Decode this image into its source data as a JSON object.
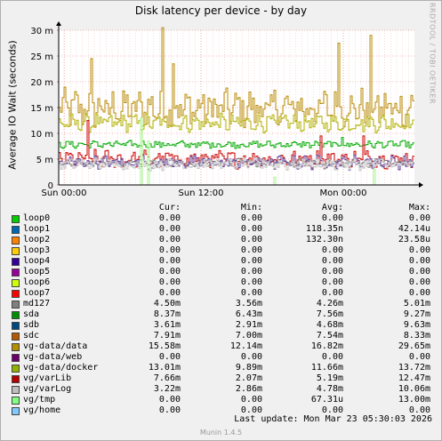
{
  "chart_data": {
    "type": "line",
    "title": "Disk latency per device - by day",
    "ylabel": "Average IO Wait (seconds)",
    "xlabel": "",
    "ylim": [
      0,
      0.03
    ],
    "y_ticks": [
      "0",
      "5 m",
      "10 m",
      "15 m",
      "20 m",
      "25 m",
      "30 m"
    ],
    "x_ticks": [
      "Sun 00:00",
      "Sun 12:00",
      "Mon 00:00"
    ],
    "grid": true,
    "series": [
      {
        "name": "vg-data/data",
        "color": "#b78b00",
        "typical": [
          0.0115,
          0.0182
        ],
        "spikes": [
          [
            0.29,
            0.0305
          ],
          [
            0.79,
            0.0275
          ],
          [
            0.88,
            0.029
          ],
          [
            0.32,
            0.0235
          ],
          [
            0.09,
            0.0245
          ]
        ]
      },
      {
        "name": "vg-data/docker",
        "color": "#b0b000",
        "typical": [
          0.0105,
          0.0135
        ],
        "spikes": [
          [
            0.64,
            0.0135
          ]
        ]
      },
      {
        "name": "sda",
        "color": "#00aa00",
        "typical": [
          0.0072,
          0.0085
        ],
        "spikes": [
          [
            0.8,
            0.0092
          ]
        ]
      },
      {
        "name": "vg/varLib",
        "color": "#cc0000",
        "typical": [
          0.0035,
          0.0065
        ],
        "spikes": [
          [
            0.08,
            0.0125
          ],
          [
            0.74,
            0.0095
          ],
          [
            0.86,
            0.0095
          ]
        ]
      },
      {
        "name": "md127",
        "color": "#777777",
        "typical": [
          0.0036,
          0.005
        ],
        "spikes": []
      },
      {
        "name": "sdb",
        "color": "#5e3c99",
        "typical": [
          0.0032,
          0.0055
        ],
        "spikes": []
      },
      {
        "name": "vg/varLog",
        "color": "#c0c0c0",
        "typical": [
          0.003,
          0.005
        ],
        "spikes": []
      },
      {
        "name": "vg/tmp",
        "color": "#a6f58c",
        "typical": [
          0,
          0
        ],
        "spikes": [
          [
            0.23,
            0.013
          ],
          [
            0.25,
            0.0085
          ],
          [
            0.61,
            0.0015
          ],
          [
            0.89,
            0.003
          ]
        ]
      }
    ]
  },
  "watermark": "RRDTOOL / TOBI OETIKER",
  "legend": {
    "headers": [
      "Cur:",
      "Min:",
      "Avg:",
      "Max:"
    ],
    "rows": [
      {
        "name": "loop0",
        "color": "#00cc00",
        "cur": "0.00",
        "min": "0.00",
        "avg": "0.00",
        "max": "0.00"
      },
      {
        "name": "loop1",
        "color": "#0066b3",
        "cur": "0.00",
        "min": "0.00",
        "avg": "118.35n",
        "max": "42.14u"
      },
      {
        "name": "loop2",
        "color": "#ff8000",
        "cur": "0.00",
        "min": "0.00",
        "avg": "132.30n",
        "max": "23.58u"
      },
      {
        "name": "loop3",
        "color": "#ffcc00",
        "cur": "0.00",
        "min": "0.00",
        "avg": "0.00",
        "max": "0.00"
      },
      {
        "name": "loop4",
        "color": "#330099",
        "cur": "0.00",
        "min": "0.00",
        "avg": "0.00",
        "max": "0.00"
      },
      {
        "name": "loop5",
        "color": "#990099",
        "cur": "0.00",
        "min": "0.00",
        "avg": "0.00",
        "max": "0.00"
      },
      {
        "name": "loop6",
        "color": "#ccff00",
        "cur": "0.00",
        "min": "0.00",
        "avg": "0.00",
        "max": "0.00"
      },
      {
        "name": "loop7",
        "color": "#ff0000",
        "cur": "0.00",
        "min": "0.00",
        "avg": "0.00",
        "max": "0.00"
      },
      {
        "name": "md127",
        "color": "#808080",
        "cur": "4.50m",
        "min": "3.56m",
        "avg": "4.26m",
        "max": "5.01m"
      },
      {
        "name": "sda",
        "color": "#008f00",
        "cur": "8.37m",
        "min": "6.43m",
        "avg": "7.56m",
        "max": "9.27m"
      },
      {
        "name": "sdb",
        "color": "#00487d",
        "cur": "3.61m",
        "min": "2.91m",
        "avg": "4.68m",
        "max": "9.63m"
      },
      {
        "name": "sdc",
        "color": "#b35a00",
        "cur": "7.91m",
        "min": "7.00m",
        "avg": "7.54m",
        "max": "8.33m"
      },
      {
        "name": "vg-data/data",
        "color": "#b38f00",
        "cur": "15.58m",
        "min": "12.14m",
        "avg": "16.82m",
        "max": "29.65m"
      },
      {
        "name": "vg-data/web",
        "color": "#6b006b",
        "cur": "0.00",
        "min": "0.00",
        "avg": "0.00",
        "max": "0.00"
      },
      {
        "name": "vg-data/docker",
        "color": "#8fb300",
        "cur": "13.01m",
        "min": "9.89m",
        "avg": "11.66m",
        "max": "13.72m"
      },
      {
        "name": "vg/varLib",
        "color": "#b30000",
        "cur": "7.66m",
        "min": "2.07m",
        "avg": "5.19m",
        "max": "12.47m"
      },
      {
        "name": "vg/varLog",
        "color": "#bebebe",
        "cur": "3.22m",
        "min": "2.86m",
        "avg": "4.78m",
        "max": "10.06m"
      },
      {
        "name": "vg/tmp",
        "color": "#80ff80",
        "cur": "0.00",
        "min": "0.00",
        "avg": "67.31u",
        "max": "13.00m"
      },
      {
        "name": "vg/home",
        "color": "#80c9ff",
        "cur": "0.00",
        "min": "0.00",
        "avg": "0.00",
        "max": "0.00"
      }
    ]
  },
  "last_update": "Last update:  Mon Mar 23 05:30:03 2026",
  "version": "Munin 1.4.5"
}
